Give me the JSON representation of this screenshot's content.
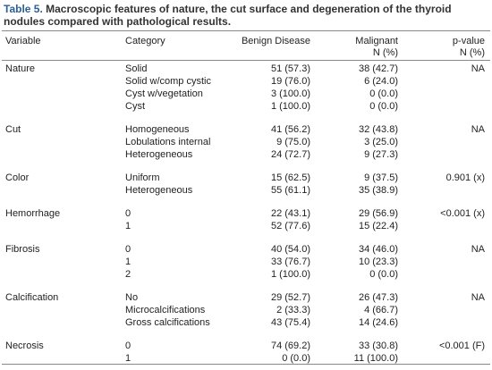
{
  "caption": {
    "label": "Table 5.",
    "text": "Macroscopic features of nature, the cut surface and degeneration of the thyroid nodules compared with pathological results."
  },
  "table": {
    "header": [
      [
        "Variable"
      ],
      [
        "Category"
      ],
      [
        "Benign Disease"
      ],
      [
        "Malignant",
        "N (%)"
      ],
      [
        "p-value",
        "N (%)"
      ]
    ],
    "groups": [
      {
        "variable": "Nature",
        "p_value": "NA",
        "rows": [
          [
            "Solid",
            "51 (57.3)",
            "38 (42.7)"
          ],
          [
            "Solid w/comp cystic",
            "19 (76.0)",
            "6 (24.0)"
          ],
          [
            "Cyst w/vegetation",
            "3 (100.0)",
            "0 (0.0)"
          ],
          [
            "Cyst",
            "1 (100.0)",
            "0 (0.0)"
          ]
        ]
      },
      {
        "variable": "Cut",
        "p_value": "NA",
        "rows": [
          [
            "Homogeneous",
            "41 (56.2)",
            "32 (43.8)"
          ],
          [
            "Lobulations internal",
            "9 (75.0)",
            "3 (25.0)"
          ],
          [
            "Heterogeneous",
            "24 (72.7)",
            "9 (27.3)"
          ]
        ]
      },
      {
        "variable": "Color",
        "p_value": "0.901 (x)",
        "rows": [
          [
            "Uniform",
            "15 (62.5)",
            "9 (37.5)"
          ],
          [
            "Heterogeneous",
            "55 (61.1)",
            "35 (38.9)"
          ]
        ]
      },
      {
        "variable": "Hemorrhage",
        "p_value": "<0.001 (x)",
        "rows": [
          [
            "0",
            "22 (43.1)",
            "29 (56.9)"
          ],
          [
            "1",
            "52 (77.6)",
            "15 (22.4)"
          ]
        ]
      },
      {
        "variable": "Fibrosis",
        "p_value": "NA",
        "rows": [
          [
            "0",
            "40 (54.0)",
            "34 (46.0)"
          ],
          [
            "1",
            "33 (76.7)",
            "10 (23.3)"
          ],
          [
            "2",
            "1 (100.0)",
            "0 (0.0)"
          ]
        ]
      },
      {
        "variable": "Calcification",
        "p_value": "NA",
        "rows": [
          [
            "No",
            "29 (52.7)",
            "26 (47.3)"
          ],
          [
            "Microcalcifications",
            "2 (33.3)",
            "4 (66.7)"
          ],
          [
            "Gross calcifications",
            "43 (75.4)",
            "14 (24.6)"
          ]
        ]
      },
      {
        "variable": "Necrosis",
        "p_value": "<0.001 (F)",
        "rows": [
          [
            "0",
            "74 (69.2)",
            "33 (30.8)"
          ],
          [
            "1",
            "0 (0.0)",
            "11 (100.0)"
          ]
        ]
      }
    ]
  }
}
